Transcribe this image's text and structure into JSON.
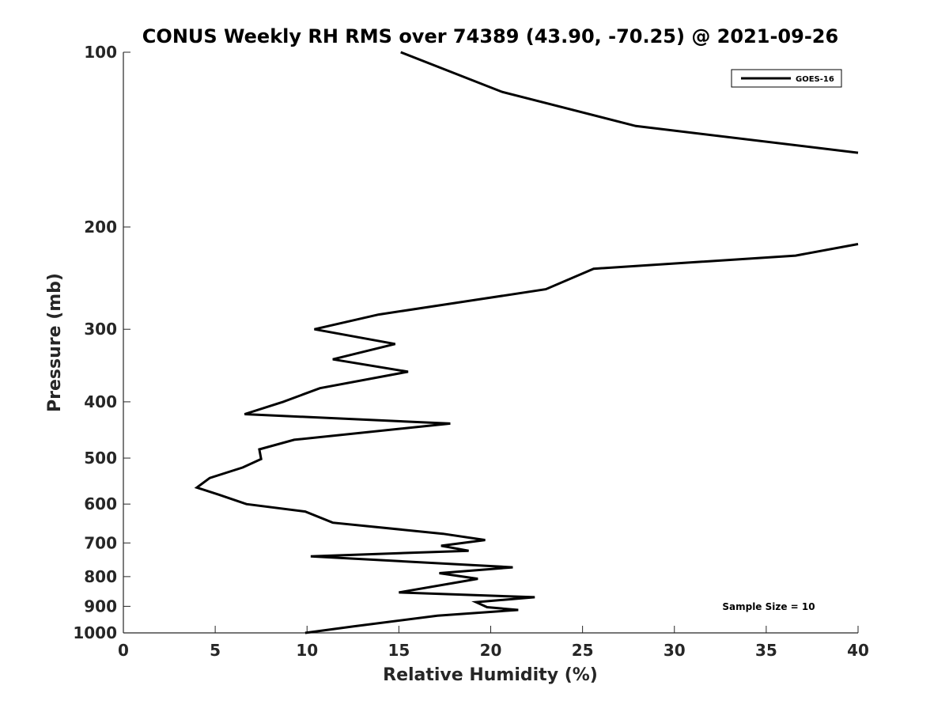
{
  "chart_data": {
    "type": "line",
    "title": "CONUS Weekly RH RMS over 74389 (43.90, -70.25) @ 2021-09-26",
    "xlabel": "Relative Humidity (%)",
    "ylabel": "Pressure (mb)",
    "xlim": [
      0,
      40
    ],
    "ylim": [
      100,
      1000
    ],
    "y_scale": "log",
    "y_reversed": true,
    "x_ticks": [
      0,
      5,
      10,
      15,
      20,
      25,
      30,
      35,
      40
    ],
    "y_ticks": [
      100,
      200,
      300,
      400,
      500,
      600,
      700,
      800,
      900,
      1000
    ],
    "legend_position": "top-right",
    "grid": false,
    "series": [
      {
        "name": "GOES-16",
        "color": "#000000",
        "points": [
          {
            "x": 15.1,
            "y": 100
          },
          {
            "x": 20.6,
            "y": 117
          },
          {
            "x": 27.9,
            "y": 134
          },
          {
            "x": 40.0,
            "y": 149
          },
          {
            "x": null,
            "y": null
          },
          {
            "x": 40.0,
            "y": 214
          },
          {
            "x": 36.6,
            "y": 224
          },
          {
            "x": 25.6,
            "y": 236
          },
          {
            "x": 23.0,
            "y": 256
          },
          {
            "x": 13.9,
            "y": 283
          },
          {
            "x": 10.4,
            "y": 300
          },
          {
            "x": 14.8,
            "y": 318
          },
          {
            "x": 11.4,
            "y": 338
          },
          {
            "x": 15.5,
            "y": 355
          },
          {
            "x": 10.7,
            "y": 379
          },
          {
            "x": 8.7,
            "y": 400
          },
          {
            "x": 6.6,
            "y": 420
          },
          {
            "x": 17.8,
            "y": 436
          },
          {
            "x": 9.3,
            "y": 465
          },
          {
            "x": 7.4,
            "y": 483
          },
          {
            "x": 7.5,
            "y": 502
          },
          {
            "x": 6.5,
            "y": 519
          },
          {
            "x": 4.7,
            "y": 541
          },
          {
            "x": 4.0,
            "y": 562
          },
          {
            "x": 5.2,
            "y": 578
          },
          {
            "x": 6.7,
            "y": 600
          },
          {
            "x": 9.9,
            "y": 618
          },
          {
            "x": 11.4,
            "y": 646
          },
          {
            "x": 17.4,
            "y": 675
          },
          {
            "x": 19.7,
            "y": 692
          },
          {
            "x": 17.3,
            "y": 708
          },
          {
            "x": 18.8,
            "y": 722
          },
          {
            "x": 10.2,
            "y": 738
          },
          {
            "x": 21.2,
            "y": 771
          },
          {
            "x": 17.2,
            "y": 789
          },
          {
            "x": 19.3,
            "y": 807
          },
          {
            "x": 15.0,
            "y": 852
          },
          {
            "x": 22.4,
            "y": 868
          },
          {
            "x": 19.2,
            "y": 885
          },
          {
            "x": 19.8,
            "y": 903
          },
          {
            "x": 21.5,
            "y": 913
          },
          {
            "x": 17.1,
            "y": 934
          },
          {
            "x": 12.5,
            "y": 975
          },
          {
            "x": 9.9,
            "y": 1000
          }
        ]
      }
    ],
    "annotations": [
      {
        "text": "Sample Size = 10",
        "position": "bottom-right"
      }
    ]
  }
}
